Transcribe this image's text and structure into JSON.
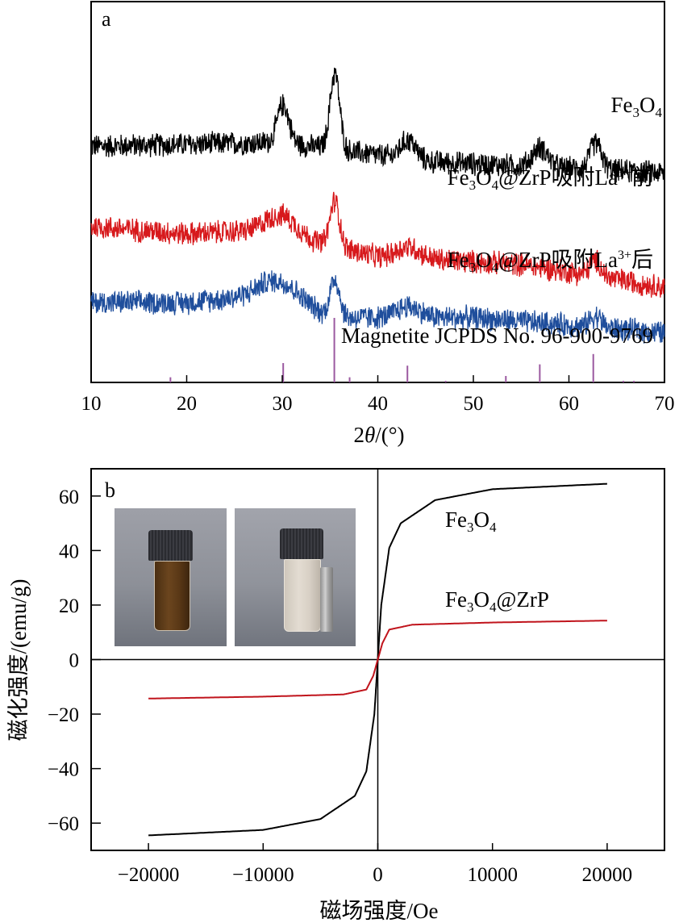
{
  "chart_data": [
    {
      "type": "line",
      "panel_label": "a",
      "title": "",
      "xlabel": "2θ/(°)",
      "xlabel_parts": {
        "prefix": "2",
        "theta": "θ",
        "suffix": "/(°)"
      },
      "ylabel": "",
      "xlim": [
        10,
        70
      ],
      "xticks": [
        10,
        20,
        30,
        40,
        50,
        60,
        70
      ],
      "grid": false,
      "y_axis_visible": false,
      "series": [
        {
          "name": "Fe3O4",
          "label_parts": {
            "a": "Fe",
            "s1": "3",
            "b": "O",
            "s2": "4",
            "c": ""
          },
          "color": "#000000",
          "baseline": [
            [
              10,
              0.62
            ],
            [
              30,
              0.63
            ],
            [
              45,
              0.58
            ],
            [
              70,
              0.55
            ]
          ],
          "peaks": [
            [
              30.1,
              0.1,
              0.6
            ],
            [
              35.5,
              0.2,
              0.5
            ],
            [
              43.2,
              0.05,
              0.8
            ],
            [
              57.0,
              0.05,
              0.8
            ],
            [
              62.8,
              0.07,
              0.6
            ]
          ],
          "noise": 0.035
        },
        {
          "name": "Fe3O4@ZrP吸附La3+前",
          "label_parts": {
            "a": "Fe",
            "s1": "3",
            "b": "O",
            "s2": "4",
            "c": "@ZrP吸附La",
            "sup": "3+",
            "d": "前"
          },
          "color": "#d7191c",
          "baseline": [
            [
              10,
              0.41
            ],
            [
              20,
              0.39
            ],
            [
              28,
              0.4
            ],
            [
              40,
              0.33
            ],
            [
              55,
              0.31
            ],
            [
              70,
              0.25
            ]
          ],
          "peaks": [
            [
              30.0,
              0.05,
              1.5
            ],
            [
              35.5,
              0.12,
              0.5
            ],
            [
              43.2,
              0.03,
              1.2
            ],
            [
              62.8,
              0.04,
              0.6
            ]
          ],
          "noise": 0.035
        },
        {
          "name": "Fe3O4@ZrP吸附La3+后",
          "label_parts": {
            "a": "Fe",
            "s1": "3",
            "b": "O",
            "s2": "4",
            "c": "@ZrP吸附La",
            "sup": "3+",
            "d": "后"
          },
          "color": "#1f4e9c",
          "baseline": [
            [
              10,
              0.21
            ],
            [
              20,
              0.21
            ],
            [
              28,
              0.23
            ],
            [
              35,
              0.17
            ],
            [
              50,
              0.17
            ],
            [
              70,
              0.13
            ]
          ],
          "peaks": [
            [
              30.0,
              0.05,
              2.0
            ],
            [
              35.5,
              0.1,
              0.5
            ],
            [
              43.2,
              0.03,
              1.2
            ],
            [
              62.8,
              0.03,
              0.6
            ]
          ],
          "noise": 0.035
        }
      ],
      "reference": {
        "name": "Magnetite JCPDS No. 96-900-9769",
        "color": "#9b59a0",
        "positions": [
          18.3,
          30.1,
          35.45,
          37.05,
          43.1,
          47.1,
          53.4,
          56.95,
          62.55,
          65.7,
          66.8
        ],
        "intensities": [
          8,
          30,
          100,
          8,
          26,
          1,
          10,
          28,
          44,
          1,
          1
        ]
      }
    },
    {
      "type": "line",
      "panel_label": "b",
      "title": "",
      "xlabel": "磁场强度/Oe",
      "ylabel": "磁化强度/(emu/g)",
      "xlim": [
        -25000,
        25000
      ],
      "ylim": [
        -70,
        70
      ],
      "xticks": [
        -20000,
        -10000,
        0,
        10000,
        20000
      ],
      "xtick_labels": [
        "−20000",
        "−10000",
        "0",
        "10000",
        "20000"
      ],
      "yticks": [
        -60,
        -40,
        -20,
        0,
        20,
        40,
        60
      ],
      "ytick_labels": [
        "−60",
        "−40",
        "−20",
        "0",
        "20",
        "40",
        "60"
      ],
      "grid": false,
      "zero_lines": true,
      "series": [
        {
          "name": "Fe3O4",
          "label_parts": {
            "a": "Fe",
            "s1": "3",
            "b": "O",
            "s2": "4",
            "c": ""
          },
          "color": "#000000",
          "ms_emu_g": 65,
          "x_range": [
            -20000,
            20000
          ],
          "points": [
            [
              -20000,
              -64.5
            ],
            [
              -10000,
              -62.5
            ],
            [
              -5000,
              -58.5
            ],
            [
              -2000,
              -50
            ],
            [
              -1000,
              -41
            ],
            [
              -300,
              -20
            ],
            [
              0,
              0
            ],
            [
              300,
              20
            ],
            [
              1000,
              41
            ],
            [
              2000,
              50
            ],
            [
              5000,
              58.5
            ],
            [
              10000,
              62.5
            ],
            [
              20000,
              64.5
            ]
          ]
        },
        {
          "name": "Fe3O4@ZrP",
          "label_parts": {
            "a": "Fe",
            "s1": "3",
            "b": "O",
            "s2": "4",
            "c": "@ZrP"
          },
          "color": "#c0141c",
          "ms_emu_g": 14.5,
          "x_range": [
            -20000,
            20000
          ],
          "points": [
            [
              -20000,
              -14.3
            ],
            [
              -10000,
              -13.6
            ],
            [
              -3000,
              -12.8
            ],
            [
              -1000,
              -11
            ],
            [
              -400,
              -6
            ],
            [
              0,
              0
            ],
            [
              400,
              6
            ],
            [
              1000,
              11
            ],
            [
              3000,
              12.8
            ],
            [
              10000,
              13.6
            ],
            [
              20000,
              14.3
            ]
          ]
        }
      ],
      "inset_photos": [
        {
          "name": "vial-dispersed",
          "description": "brown Fe3O4@ZrP suspension in vial"
        },
        {
          "name": "vial-magnet-separated",
          "description": "clear solution with magnet beside vial"
        }
      ]
    }
  ]
}
